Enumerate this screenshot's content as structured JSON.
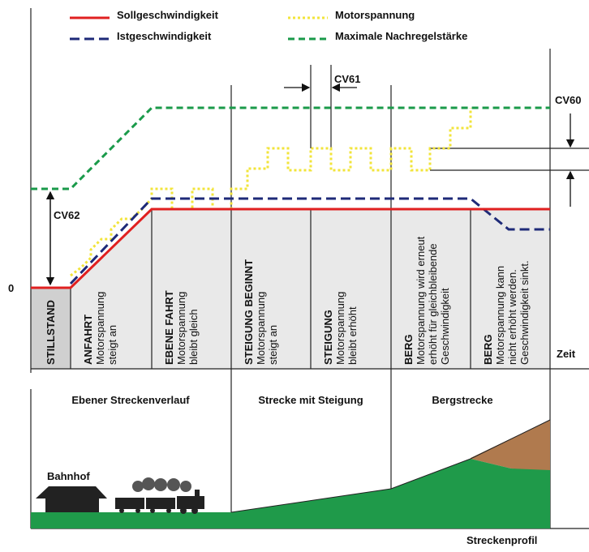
{
  "legend": [
    "Sollgeschwindigkeit",
    "Istgeschwindigkeit",
    "Motorspannung",
    "Maximale Nachregelstärke"
  ],
  "labels": {
    "cv61": "CV61",
    "cv60": "CV60",
    "cv62": "CV62",
    "zero": "0",
    "time": "Zeit"
  },
  "phases": [
    {
      "title": "STILLSTAND",
      "lines": []
    },
    {
      "title": "ANFAHRT",
      "lines": [
        "Motorspannung",
        "steigt an"
      ]
    },
    {
      "title": "EBENE FAHRT",
      "lines": [
        "Motorspannung",
        "bleibt gleich"
      ]
    },
    {
      "title": "STEIGUNG BEGINNT",
      "lines": [
        "Motorspannung",
        "steigt an"
      ]
    },
    {
      "title": "STEIGUNG",
      "lines": [
        "Motorspannung",
        "bleibt erhöht"
      ]
    },
    {
      "title": "BERG",
      "lines": [
        "Motorspannung wird erneut",
        "erhöht für gleichbleibende",
        "Geschwindigkeit"
      ]
    },
    {
      "title": "BERG",
      "lines": [
        "Motorspannung kann",
        "nicht erhöht werden.",
        "Geschwindigkeit sinkt."
      ]
    }
  ],
  "profile": {
    "sections": [
      "Ebener Streckenverlauf",
      "Strecke mit Steigung",
      "Bergstrecke"
    ],
    "station": "Bahnhof",
    "caption": "Streckenprofil"
  }
}
